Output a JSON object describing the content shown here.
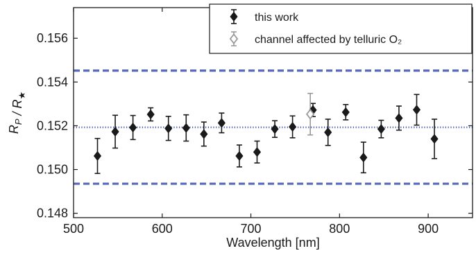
{
  "chart_data": {
    "type": "scatter",
    "xlabel": "Wavelength [nm]",
    "ylabel": "R_P / R_★",
    "xlim": [
      500,
      950
    ],
    "ylim": [
      0.1478,
      0.1574
    ],
    "xticks": [
      500,
      600,
      700,
      800,
      900
    ],
    "xtick_labels": [
      "500",
      "600",
      "700",
      "800",
      "900"
    ],
    "yticks": [
      0.148,
      0.15,
      0.152,
      0.154,
      0.156
    ],
    "ytick_labels": [
      "0.148",
      "0.150",
      "0.152",
      "0.154",
      "0.156"
    ],
    "grid": false,
    "legend_position": "top-right",
    "series": [
      {
        "name": "this work",
        "marker": "filled-diamond",
        "color": "#1a1a1a",
        "x": [
          527,
          547,
          567,
          587,
          607,
          627,
          647,
          667,
          687,
          707,
          727,
          747,
          770,
          787,
          807,
          827,
          847,
          867,
          887,
          907
        ],
        "y": [
          0.15062,
          0.15173,
          0.15192,
          0.15252,
          0.15188,
          0.1519,
          0.15162,
          0.15213,
          0.15062,
          0.1508,
          0.15185,
          0.15195,
          0.15272,
          0.1517,
          0.15262,
          0.15055,
          0.15185,
          0.15235,
          0.15273,
          0.1514
        ],
        "yerr": [
          0.0008,
          0.00075,
          0.00055,
          0.0003,
          0.00055,
          0.0006,
          0.00055,
          0.00045,
          0.0005,
          0.0005,
          0.00038,
          0.0005,
          0.0003,
          0.0006,
          0.00035,
          0.0007,
          0.0004,
          0.00055,
          0.0007,
          0.0009
        ]
      },
      {
        "name": "channel affected by telluric O₂",
        "marker": "open-diamond",
        "color": "#999999",
        "x": [
          767
        ],
        "y": [
          0.15253
        ],
        "yerr": [
          0.00095
        ]
      }
    ],
    "reference_lines": [
      {
        "style": "dotted",
        "color": "#5566bb",
        "y": 0.15193
      },
      {
        "style": "dashed",
        "color": "#5566bb",
        "y": 0.15452
      },
      {
        "style": "dashed",
        "color": "#5566bb",
        "y": 0.14935
      }
    ]
  }
}
